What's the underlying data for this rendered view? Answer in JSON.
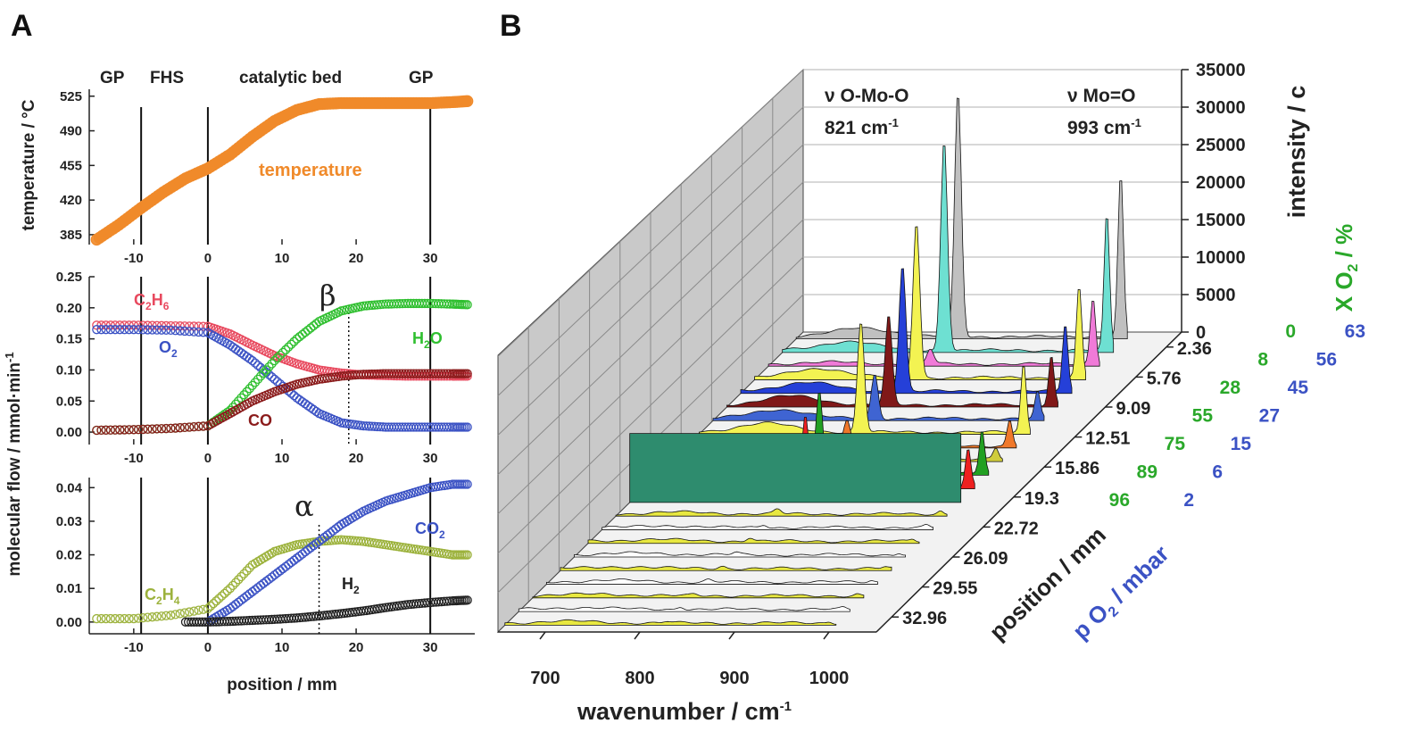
{
  "colors": {
    "orange": "#f08a2a",
    "red": "#e84a5f",
    "blue": "#3b52c4",
    "green": "#2fbf2f",
    "darkred": "#8b1c1c",
    "olive": "#9cb23c",
    "black": "#222222",
    "axis": "#222222"
  },
  "panels": {
    "A": "A",
    "B": "B"
  },
  "chart_data": [
    {
      "id": "A-top",
      "type": "scatter",
      "ylabel": "temperature / °C",
      "xlabel": "",
      "xlim": [
        -16,
        36
      ],
      "ylim": [
        375,
        532
      ],
      "xticks": [
        -10,
        0,
        10,
        20,
        30
      ],
      "yticks": [
        385,
        420,
        455,
        490,
        525
      ],
      "xtick_labels": [
        "-10",
        "0",
        "10",
        "20",
        "30"
      ],
      "ytick_labels": [
        "385",
        "420",
        "455",
        "490",
        "525"
      ],
      "zones": [
        "GP",
        "FHS",
        "catalytic bed",
        "GP"
      ],
      "vlines": [
        -9,
        0,
        30
      ],
      "series": [
        {
          "name": "temperature",
          "color": "orange",
          "label": "temperature",
          "x": [
            -15,
            -12,
            -9,
            -6,
            -3,
            0,
            3,
            6,
            9,
            12,
            15,
            18,
            21,
            24,
            27,
            30,
            33,
            35
          ],
          "y": [
            380,
            395,
            412,
            428,
            442,
            452,
            466,
            484,
            500,
            511,
            517,
            518,
            518,
            518,
            518,
            518,
            519,
            520
          ]
        }
      ]
    },
    {
      "id": "A-mid",
      "type": "scatter",
      "ylabel": "",
      "xlabel": "",
      "xlim": [
        -16,
        36
      ],
      "ylim": [
        -0.02,
        0.25
      ],
      "xticks": [
        -10,
        0,
        10,
        20,
        30
      ],
      "yticks": [
        0.0,
        0.05,
        0.1,
        0.15,
        0.2,
        0.25
      ],
      "xtick_labels": [
        "-10",
        "0",
        "10",
        "20",
        "30"
      ],
      "ytick_labels": [
        "0.00",
        "0.05",
        "0.10",
        "0.15",
        "0.20",
        "0.25"
      ],
      "vlines": [
        -9,
        0,
        30
      ],
      "dotted_x": 19,
      "dotted_label": "β",
      "series": [
        {
          "name": "C2H6",
          "label_main": "C",
          "sub1": "2",
          "label_mid": "H",
          "sub2": "6",
          "color": "red",
          "x": [
            -15,
            -10,
            -5,
            0,
            3,
            6,
            9,
            12,
            15,
            18,
            21,
            24,
            27,
            30,
            33,
            35
          ],
          "y": [
            0.172,
            0.172,
            0.171,
            0.17,
            0.158,
            0.14,
            0.123,
            0.11,
            0.1,
            0.095,
            0.092,
            0.091,
            0.09,
            0.09,
            0.09,
            0.09
          ]
        },
        {
          "name": "O2",
          "label_main": "O",
          "sub1": "2",
          "color": "blue",
          "x": [
            -15,
            -10,
            -5,
            0,
            3,
            6,
            9,
            12,
            15,
            18,
            21,
            24,
            27,
            30,
            33,
            35
          ],
          "y": [
            0.165,
            0.165,
            0.164,
            0.16,
            0.14,
            0.115,
            0.085,
            0.055,
            0.03,
            0.015,
            0.01,
            0.008,
            0.008,
            0.008,
            0.008,
            0.008
          ]
        },
        {
          "name": "H2O",
          "label_main": "H",
          "sub1": "2",
          "label_mid": "O",
          "color": "green",
          "x": [
            -15,
            -10,
            -5,
            0,
            3,
            6,
            9,
            12,
            15,
            18,
            21,
            24,
            27,
            30,
            33,
            35
          ],
          "y": [
            0.003,
            0.004,
            0.006,
            0.01,
            0.035,
            0.075,
            0.115,
            0.15,
            0.178,
            0.195,
            0.203,
            0.206,
            0.207,
            0.207,
            0.206,
            0.205
          ]
        },
        {
          "name": "CO",
          "label_main": "CO",
          "color": "darkred",
          "x": [
            -15,
            -10,
            -5,
            0,
            3,
            6,
            9,
            12,
            15,
            18,
            21,
            24,
            27,
            30,
            33,
            35
          ],
          "y": [
            0.003,
            0.004,
            0.006,
            0.01,
            0.03,
            0.05,
            0.065,
            0.077,
            0.085,
            0.09,
            0.093,
            0.094,
            0.094,
            0.094,
            0.094,
            0.094
          ]
        }
      ]
    },
    {
      "id": "A-bot",
      "type": "scatter",
      "ylabel": "molecular flow / mmol·min",
      "ylabel_sup": "-1",
      "xlabel": "position / mm",
      "xlim": [
        -16,
        36
      ],
      "ylim": [
        -0.0035,
        0.043
      ],
      "xticks": [
        -10,
        0,
        10,
        20,
        30
      ],
      "yticks": [
        0.0,
        0.01,
        0.02,
        0.03,
        0.04
      ],
      "xtick_labels": [
        "-10",
        "0",
        "10",
        "20",
        "30"
      ],
      "ytick_labels": [
        "0.00",
        "0.01",
        "0.02",
        "0.03",
        "0.04"
      ],
      "vlines": [
        -9,
        0,
        30
      ],
      "dotted_x": 15,
      "dotted_label": "α",
      "series": [
        {
          "name": "C2H4",
          "label_main": "C",
          "sub1": "2",
          "label_mid": "H",
          "sub2": "4",
          "color": "olive",
          "x": [
            -15,
            -10,
            -5,
            0,
            3,
            6,
            9,
            12,
            15,
            18,
            21,
            24,
            27,
            30,
            33,
            35
          ],
          "y": [
            0.001,
            0.001,
            0.002,
            0.004,
            0.01,
            0.017,
            0.021,
            0.023,
            0.024,
            0.0245,
            0.024,
            0.023,
            0.022,
            0.021,
            0.02,
            0.02
          ]
        },
        {
          "name": "CO2",
          "label_main": "CO",
          "sub1": "2",
          "color": "blue",
          "x": [
            0,
            3,
            6,
            9,
            12,
            15,
            18,
            21,
            24,
            27,
            30,
            33,
            35
          ],
          "y": [
            0.0,
            0.004,
            0.009,
            0.014,
            0.019,
            0.024,
            0.029,
            0.033,
            0.036,
            0.038,
            0.04,
            0.041,
            0.041
          ]
        },
        {
          "name": "H2",
          "label_main": "H",
          "sub1": "2",
          "color": "black",
          "x": [
            -3,
            0,
            3,
            6,
            9,
            12,
            15,
            18,
            21,
            24,
            27,
            30,
            33,
            35
          ],
          "y": [
            0.0,
            0.0,
            0.0002,
            0.0005,
            0.0008,
            0.0012,
            0.0018,
            0.0025,
            0.0033,
            0.0043,
            0.0052,
            0.0058,
            0.0063,
            0.0065
          ]
        }
      ]
    },
    {
      "id": "B",
      "type": "area",
      "xlabel": "wavenumber / cm",
      "xlabel_sup": "-1",
      "ylabel_y": "intensity / c",
      "ylabel_z": "position / mm",
      "xlim": [
        650,
        1050
      ],
      "zlim": [
        0,
        35000
      ],
      "xticks": [
        700,
        800,
        900,
        1000
      ],
      "xtick_labels": [
        "700",
        "800",
        "900",
        "1000"
      ],
      "zticks": [
        0,
        5000,
        10000,
        15000,
        20000,
        25000,
        30000,
        35000
      ],
      "ztick_labels": [
        "0",
        "5000",
        "10000",
        "15000",
        "20000",
        "25000",
        "30000",
        "35000"
      ],
      "annotations": {
        "omo": "ν O-Mo-O",
        "omo_val": "821 cm",
        "mo": "ν Mo=O",
        "mo_val": "993 cm",
        "sup": "-1"
      },
      "xo2_label": "X O",
      "xo2_sub": "2",
      "xo2_unit": " / %",
      "po2_label": "p O",
      "po2_sub": "2",
      "po2_unit": " / mbar",
      "positions": [
        "2.36",
        "5.76",
        "9.09",
        "12.51",
        "15.86",
        "19.3",
        "22.72",
        "26.09",
        "29.55",
        "32.96"
      ],
      "xo2_values": [
        "0",
        "8",
        "28",
        "55",
        "75",
        "89",
        "96"
      ],
      "po2_values": [
        "63",
        "56",
        "45",
        "27",
        "15",
        "6",
        "2"
      ],
      "peaks_cm": [
        821,
        993
      ],
      "spectra": [
        {
          "color": "#c0c0c0",
          "a821": 33000,
          "a993": 22000
        },
        {
          "color": "#6ee0d2",
          "a821": 28500,
          "a993": 18500
        },
        {
          "color": "#f07ad8",
          "a821": 2000,
          "a993": 9000
        },
        {
          "color": "#f3f352",
          "a821": 21000,
          "a993": 12500
        },
        {
          "color": "#2540d8",
          "a821": 17000,
          "a993": 9200
        },
        {
          "color": "#801818",
          "a821": 12000,
          "a993": 6800
        },
        {
          "color": "#3f64d2",
          "a821": 6000,
          "a993": 3600
        },
        {
          "color": "#f3f352",
          "a821": 15000,
          "a993": 9200
        },
        {
          "color": "#f0782a",
          "a821": 3500,
          "a993": 3500
        },
        {
          "color": "#d0cc3c",
          "a821": 1500,
          "a993": 1500
        },
        {
          "color": "#22a022",
          "a821": 11000,
          "a993": 6000
        },
        {
          "color": "#ee2020",
          "a821": 9500,
          "a993": 5200
        },
        {
          "color": "#2e8c6e",
          "a821": 0,
          "a993": 0
        },
        {
          "color": "#e8e840",
          "a821": 600,
          "a993": 400
        },
        {
          "color": "#ffffff",
          "a821": 400,
          "a993": 300
        },
        {
          "color": "#e8e840",
          "a821": 500,
          "a993": 300
        },
        {
          "color": "#ffffff",
          "a821": 300,
          "a993": 300
        },
        {
          "color": "#e8e840",
          "a821": 300,
          "a993": 200
        },
        {
          "color": "#ffffff",
          "a821": 300,
          "a993": 200
        },
        {
          "color": "#e8e840",
          "a821": 200,
          "a993": 200
        },
        {
          "color": "#ffffff",
          "a821": 400,
          "a993": 200
        },
        {
          "color": "#e8e840",
          "a821": 200,
          "a993": 200
        }
      ]
    }
  ]
}
